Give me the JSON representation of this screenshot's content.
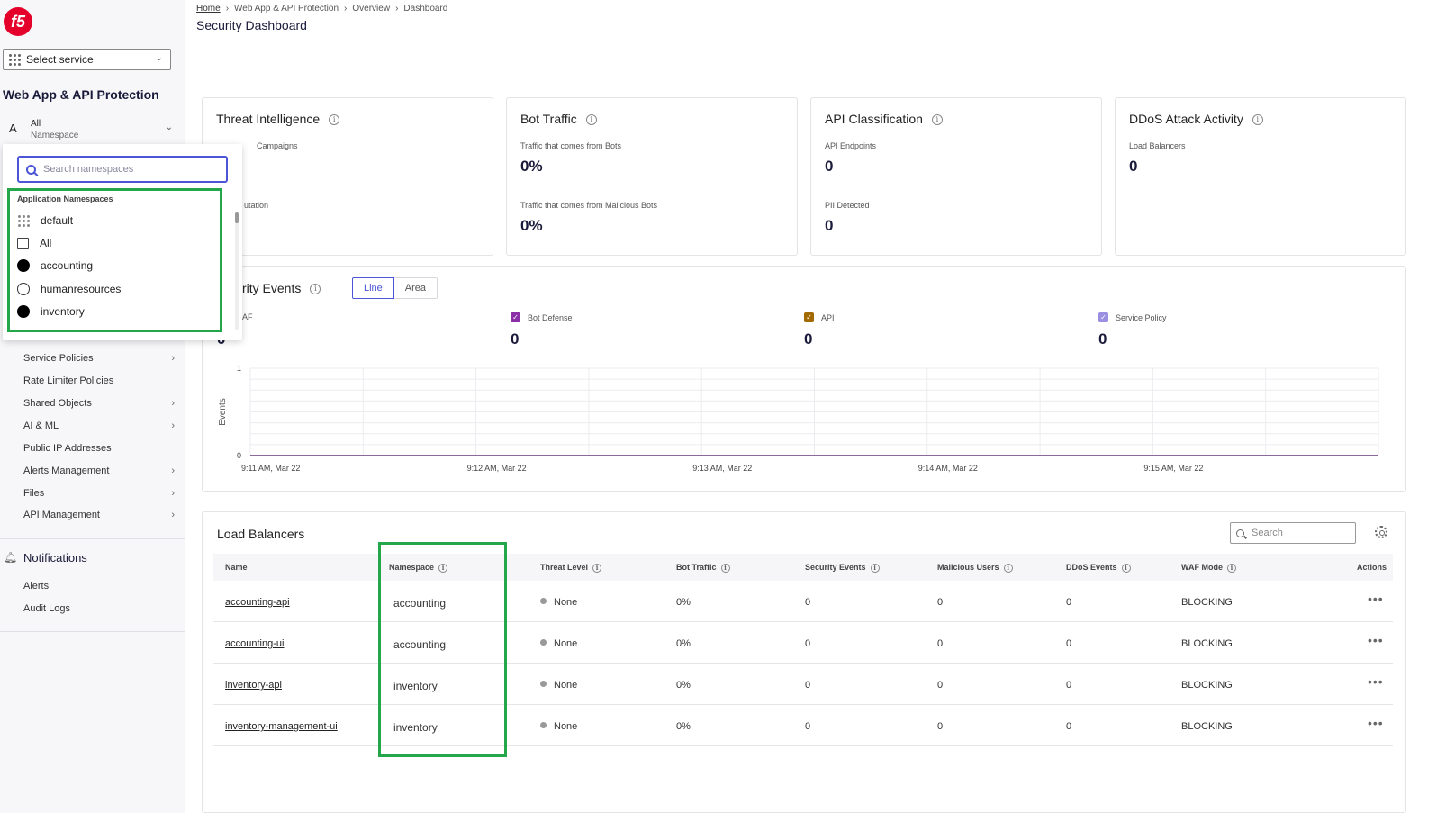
{
  "sidebar": {
    "logo": "f5",
    "service_select": "Select service",
    "section_title": "Web App & API Protection",
    "namespace": {
      "avatar": "A",
      "value": "All",
      "label": "Namespace"
    },
    "nav_items": [
      {
        "label": "Service Policies",
        "arrow": true
      },
      {
        "label": "Rate Limiter Policies",
        "arrow": false
      },
      {
        "label": "Shared Objects",
        "arrow": true
      },
      {
        "label": "AI & ML",
        "arrow": true
      },
      {
        "label": "Public IP Addresses",
        "arrow": false
      },
      {
        "label": "Alerts Management",
        "arrow": true
      },
      {
        "label": "Files",
        "arrow": true
      },
      {
        "label": "API Management",
        "arrow": true
      }
    ],
    "notifications": {
      "title": "Notifications",
      "items": [
        "Alerts",
        "Audit Logs"
      ]
    }
  },
  "ns_dropdown": {
    "search_placeholder": "Search namespaces",
    "group_title": "Application Namespaces",
    "options": [
      {
        "label": "default",
        "marker": "dots"
      },
      {
        "label": "All",
        "marker": "checkbox"
      },
      {
        "label": "accounting",
        "marker": "filled"
      },
      {
        "label": "humanresources",
        "marker": "hollow"
      },
      {
        "label": "inventory",
        "marker": "filled"
      }
    ]
  },
  "header": {
    "breadcrumb": [
      "Home",
      "Web App & API Protection",
      "Overview",
      "Dashboard"
    ],
    "title": "Security Dashboard"
  },
  "cards": [
    {
      "title": "Threat Intelligence",
      "metrics": [
        {
          "label": "Campaigns",
          "value": ""
        },
        {
          "label": "utation",
          "value": ""
        }
      ]
    },
    {
      "title": "Bot Traffic",
      "metrics": [
        {
          "label": "Traffic that comes from Bots",
          "value": "0%"
        },
        {
          "label": "Traffic that comes from Malicious Bots",
          "value": "0%"
        }
      ]
    },
    {
      "title": "API Classification",
      "metrics": [
        {
          "label": "API Endpoints",
          "value": "0"
        },
        {
          "label": "PII Detected",
          "value": "0"
        }
      ]
    },
    {
      "title": "DDoS Attack Activity",
      "metrics": [
        {
          "label": "Load Balancers",
          "value": "0"
        }
      ]
    }
  ],
  "events": {
    "title": "rity Events",
    "toggle": [
      "Line",
      "Area"
    ],
    "legend": [
      {
        "label": "AF",
        "value": "0",
        "color": "#4b55d6"
      },
      {
        "label": "Bot Defense",
        "value": "0",
        "color": "#8b2fa8"
      },
      {
        "label": "API",
        "value": "0",
        "color": "#a36a00"
      },
      {
        "label": "Service Policy",
        "value": "0",
        "color": "#9a8fe0"
      }
    ]
  },
  "chart_data": {
    "type": "line",
    "title": "",
    "xlabel": "",
    "ylabel": "Events",
    "ylim": [
      0,
      1
    ],
    "yticks": [
      "0",
      "1"
    ],
    "categories": [
      "9:11 AM, Mar 22",
      "9:12 AM, Mar 22",
      "9:13 AM, Mar 22",
      "9:14 AM, Mar 22",
      "9:15 AM, Mar 22"
    ],
    "series": [
      {
        "name": "Bot Defense",
        "values": [
          0,
          0,
          0,
          0,
          0
        ]
      }
    ],
    "grid": true
  },
  "load_balancers": {
    "title": "Load Balancers",
    "search_placeholder": "Search",
    "columns": [
      "Name",
      "Namespace",
      "Threat Level",
      "Bot Traffic",
      "Security Events",
      "Malicious Users",
      "DDoS Events",
      "WAF Mode",
      "Actions"
    ],
    "rows": [
      {
        "name": "accounting-api",
        "namespace": "accounting",
        "threat": "None",
        "bot": "0%",
        "sec": "0",
        "mal": "0",
        "ddos": "0",
        "waf": "BLOCKING",
        "actions": "•••"
      },
      {
        "name": "accounting-ui",
        "namespace": "accounting",
        "threat": "None",
        "bot": "0%",
        "sec": "0",
        "mal": "0",
        "ddos": "0",
        "waf": "BLOCKING",
        "actions": "•••"
      },
      {
        "name": "inventory-api",
        "namespace": "inventory",
        "threat": "None",
        "bot": "0%",
        "sec": "0",
        "mal": "0",
        "ddos": "0",
        "waf": "BLOCKING",
        "actions": "•••"
      },
      {
        "name": "inventory-management-ui",
        "namespace": "inventory",
        "threat": "None",
        "bot": "0%",
        "sec": "0",
        "mal": "0",
        "ddos": "0",
        "waf": "BLOCKING",
        "actions": "•••"
      }
    ]
  },
  "colors": {
    "accent": "#4b55d6",
    "highlight": "#23a74a",
    "brand": "#e4002b"
  }
}
